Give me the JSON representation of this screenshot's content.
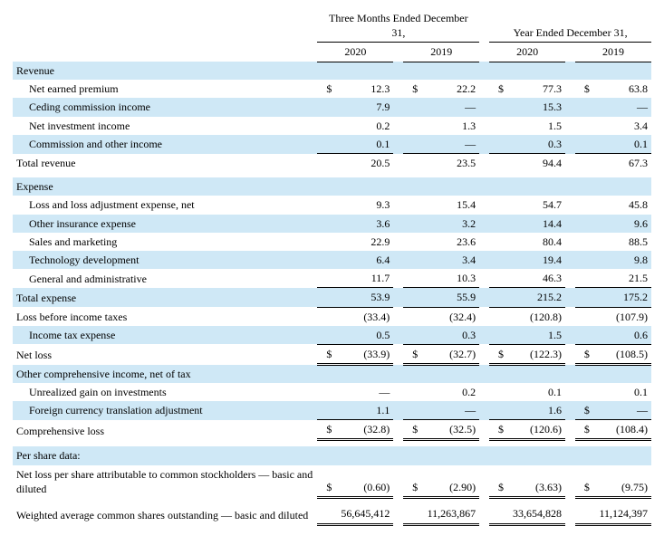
{
  "header": {
    "period1_title": "Three Months Ended December 31,",
    "period2_title": "Year Ended December 31,",
    "y2020": "2020",
    "y2019": "2019"
  },
  "rows": {
    "revenue": "Revenue",
    "net_earned_premium": "Net earned premium",
    "ceding_commission": "Ceding commission income",
    "net_investment": "Net investment income",
    "commission_other": "Commission and other income",
    "total_revenue": "Total revenue",
    "expense": "Expense",
    "loss_adj": "Loss and loss adjustment expense, net",
    "other_ins": "Other insurance expense",
    "sales_mkt": "Sales and marketing",
    "tech_dev": "Technology development",
    "gen_admin": "General and administrative",
    "total_expense": "Total expense",
    "loss_before_tax": "Loss before income taxes",
    "income_tax": "Income tax expense",
    "net_loss": "Net loss",
    "oci": "Other comprehensive income, net of tax",
    "unrealized": "Unrealized gain on investments",
    "fx": "Foreign currency translation adjustment",
    "comp_loss": "Comprehensive loss",
    "per_share": "Per share data:",
    "nlps": "Net loss per share attributable to common stockholders — basic and diluted",
    "wacso": "Weighted average common shares outstanding — basic and diluted"
  },
  "v": {
    "net_earned_premium": {
      "q20": "12.3",
      "q19": "22.2",
      "y20": "77.3",
      "y19": "63.8"
    },
    "ceding_commission": {
      "q20": "7.9",
      "q19": "—",
      "y20": "15.3",
      "y19": "—"
    },
    "net_investment": {
      "q20": "0.2",
      "q19": "1.3",
      "y20": "1.5",
      "y19": "3.4"
    },
    "commission_other": {
      "q20": "0.1",
      "q19": "—",
      "y20": "0.3",
      "y19": "0.1"
    },
    "total_revenue": {
      "q20": "20.5",
      "q19": "23.5",
      "y20": "94.4",
      "y19": "67.3"
    },
    "loss_adj": {
      "q20": "9.3",
      "q19": "15.4",
      "y20": "54.7",
      "y19": "45.8"
    },
    "other_ins": {
      "q20": "3.6",
      "q19": "3.2",
      "y20": "14.4",
      "y19": "9.6"
    },
    "sales_mkt": {
      "q20": "22.9",
      "q19": "23.6",
      "y20": "80.4",
      "y19": "88.5"
    },
    "tech_dev": {
      "q20": "6.4",
      "q19": "3.4",
      "y20": "19.4",
      "y19": "9.8"
    },
    "gen_admin": {
      "q20": "11.7",
      "q19": "10.3",
      "y20": "46.3",
      "y19": "21.5"
    },
    "total_expense": {
      "q20": "53.9",
      "q19": "55.9",
      "y20": "215.2",
      "y19": "175.2"
    },
    "loss_before_tax": {
      "q20": "(33.4)",
      "q19": "(32.4)",
      "y20": "(120.8)",
      "y19": "(107.9)"
    },
    "income_tax": {
      "q20": "0.5",
      "q19": "0.3",
      "y20": "1.5",
      "y19": "0.6"
    },
    "net_loss": {
      "q20": "(33.9)",
      "q19": "(32.7)",
      "y20": "(122.3)",
      "y19": "(108.5)"
    },
    "unrealized": {
      "q20": "—",
      "q19": "0.2",
      "y20": "0.1",
      "y19": "0.1"
    },
    "fx": {
      "q20": "1.1",
      "q19": "—",
      "y20": "1.6",
      "y19": "—"
    },
    "comp_loss": {
      "q20": "(32.8)",
      "q19": "(32.5)",
      "y20": "(120.6)",
      "y19": "(108.4)"
    },
    "nlps": {
      "q20": "(0.60)",
      "q19": "(2.90)",
      "y20": "(3.63)",
      "y19": "(9.75)"
    },
    "wacso": {
      "q20": "56,645,412",
      "q19": "11,263,867",
      "y20": "33,654,828",
      "y19": "11,124,397"
    }
  },
  "sym": {
    "dollar": "$"
  },
  "style": {
    "shade_color": "#cfe8f6",
    "font_family": "Times New Roman",
    "base_font_size_pt": 12,
    "text_color": "#000000",
    "background_color": "#ffffff"
  }
}
